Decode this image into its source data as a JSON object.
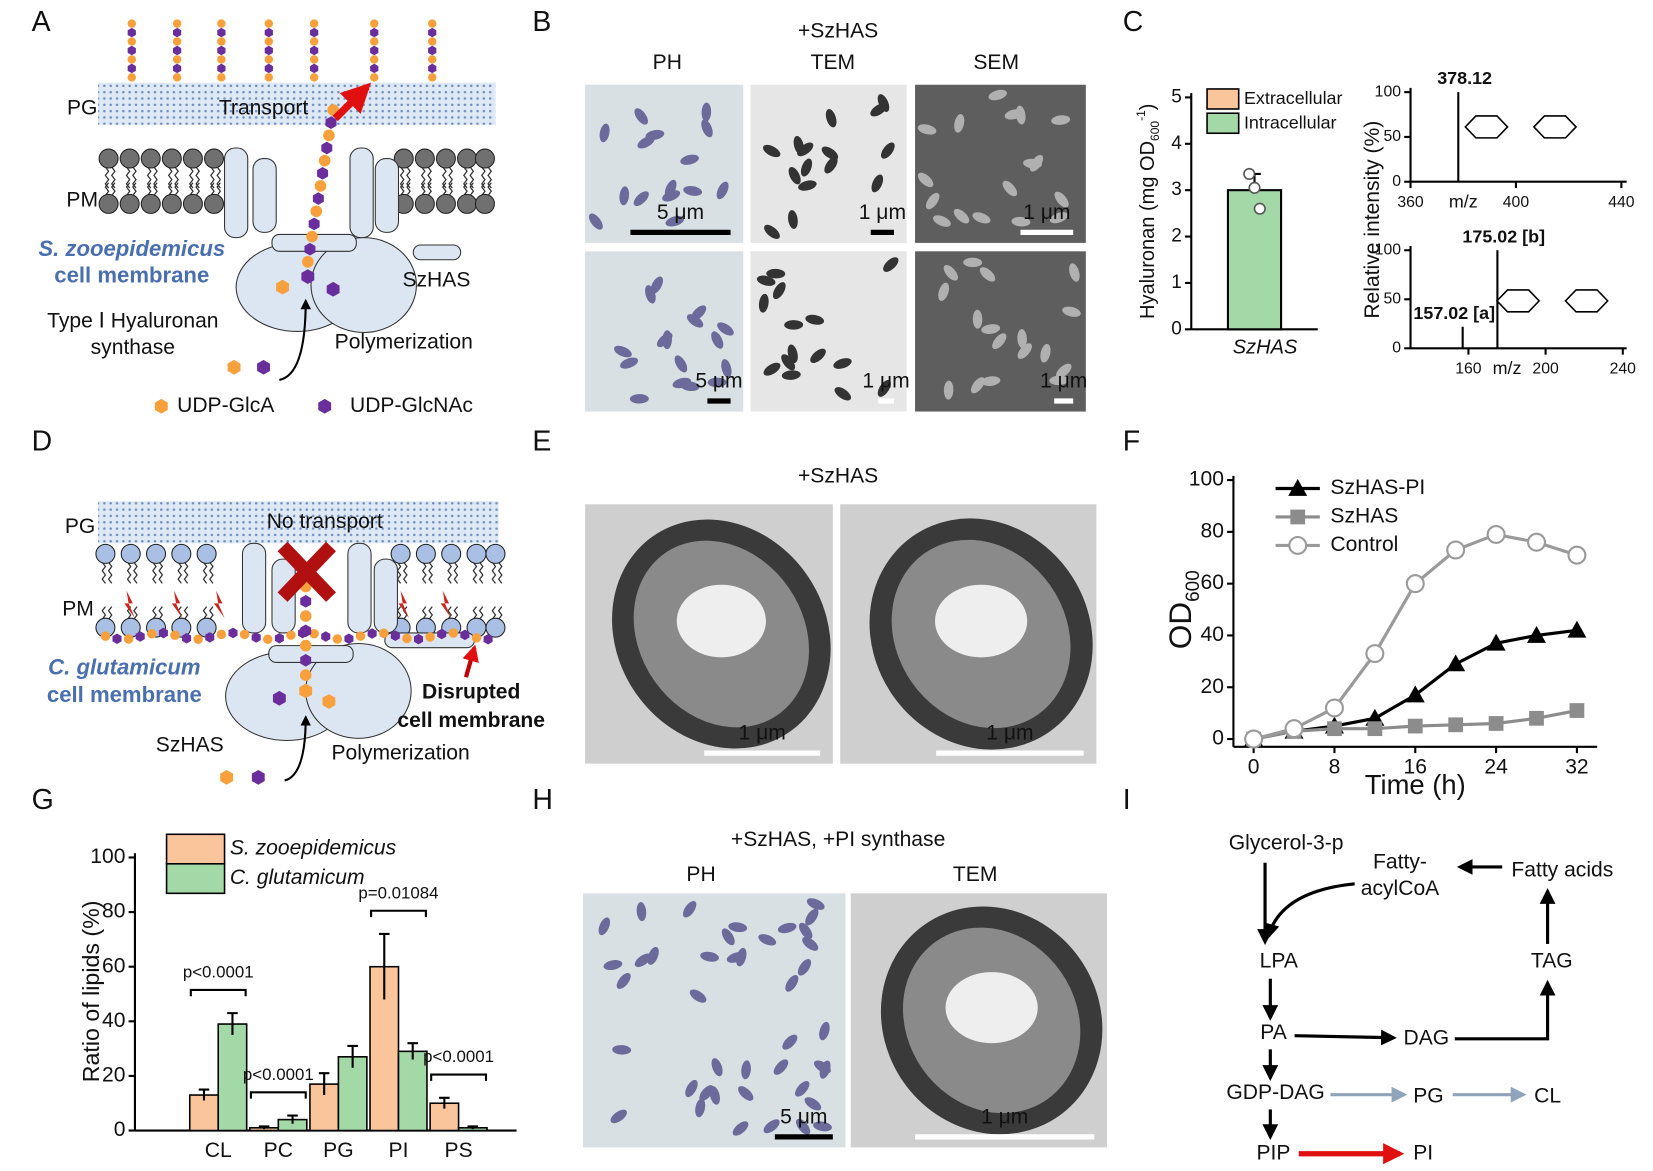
{
  "panel_labels": [
    "A",
    "B",
    "C",
    "D",
    "E",
    "F",
    "G",
    "H",
    "I"
  ],
  "panel_a": {
    "pg": "PG",
    "transport": "Transport",
    "pm": "PM",
    "organism": "S. zooepidemicus",
    "membrane": "cell membrane",
    "enzyme": "SzHAS",
    "enzyme_type": [
      "Type Ⅰ Hyaluronan",
      "synthase"
    ],
    "process": "Polymerization",
    "substrates": [
      "UDP-GlcA",
      "UDP-GlcNAc"
    ]
  },
  "panel_b": {
    "title": "+SzHAS",
    "columns": [
      "PH",
      "TEM",
      "SEM"
    ],
    "scale_bars": [
      [
        "5 μm",
        "1 μm",
        "1 μm"
      ],
      [
        "5 μm",
        "1 μm",
        "1 μm"
      ]
    ]
  },
  "panel_d": {
    "pg": "PG",
    "transport": "No transport",
    "pm": "PM",
    "organism": "C. glutamicum",
    "membrane": "cell membrane",
    "damage": [
      "Disrupted",
      "cell membrane"
    ],
    "enzyme": "SzHAS",
    "process": "Polymerization"
  },
  "panel_e": {
    "title": "+SzHAS",
    "scale_bars": [
      "1 μm",
      "1 μm"
    ]
  },
  "panel_h": {
    "title": "+SzHAS, +PI synthase",
    "columns": [
      "PH",
      "TEM"
    ],
    "scale_bars": [
      "5 μm",
      "1 μm"
    ]
  },
  "panel_i": {
    "nodes": [
      "Glycerol-3-p",
      [
        "Fatty-",
        "acylCoA"
      ],
      "Fatty acids",
      "LPA",
      "TAG",
      "PA",
      "DAG",
      "GDP-DAG",
      "PG",
      "CL",
      "PIP",
      "PI"
    ]
  },
  "chart_data": [
    {
      "type": "bar",
      "y_label": [
        "Hyaluronan (mg OD",
        "600",
        "-1",
        ")"
      ],
      "categories": [
        "SzHAS"
      ],
      "series": [
        {
          "name": "Extracellular",
          "color": "#fbc59c",
          "values": [
            0
          ]
        },
        {
          "name": "Intracellular",
          "color": "#a2d9a6",
          "values": [
            3.0
          ],
          "errors": [
            0.35
          ],
          "points": [
            [
              3.35,
              3.05,
              2.6
            ]
          ]
        }
      ],
      "ylim": [
        0,
        5
      ],
      "yticks": [
        0,
        1,
        2,
        3,
        4,
        5
      ]
    },
    {
      "type": "stem",
      "x": [
        378.12
      ],
      "values": [
        100
      ],
      "value_labels": [
        "378.12"
      ],
      "xlim": [
        360,
        442
      ],
      "xticks": [
        360,
        400,
        440
      ],
      "ylim": [
        0,
        100
      ],
      "yticks": [
        0,
        50,
        100
      ],
      "x_label": "m/z",
      "y_label": "Relative intensity (%)"
    },
    {
      "type": "stem",
      "x": [
        157.02,
        175.02
      ],
      "values": [
        22,
        100
      ],
      "value_labels": [
        "157.02 [a]",
        "175.02 [b]"
      ],
      "xlim": [
        130,
        242
      ],
      "xticks": [
        160,
        200,
        240
      ],
      "ylim": [
        0,
        100
      ],
      "yticks": [
        0,
        50,
        100
      ],
      "x_label": "m/z"
    },
    {
      "type": "line",
      "x": [
        0,
        4,
        8,
        12,
        16,
        20,
        24,
        28,
        32
      ],
      "series": [
        {
          "name": "SzHAS-PI",
          "color": "#000000",
          "marker": "triangle",
          "values": [
            0,
            3,
            5,
            8,
            17,
            29,
            37,
            40,
            42
          ]
        },
        {
          "name": "SzHAS",
          "color": "#8c8c8c",
          "marker": "square",
          "values": [
            0,
            3,
            4,
            4,
            5,
            5.5,
            6,
            8,
            11
          ]
        },
        {
          "name": "Control",
          "color": "#9a9a9a",
          "marker": "circle",
          "values": [
            0,
            4,
            12,
            33,
            60,
            73,
            79,
            76,
            71
          ]
        }
      ],
      "xlim": [
        -2,
        34
      ],
      "xticks": [
        0,
        8,
        16,
        24,
        32
      ],
      "ylim": [
        -3,
        100
      ],
      "yticks": [
        0,
        20,
        40,
        60,
        80,
        100
      ],
      "x_label": "Time (h)",
      "y_label": [
        "OD",
        "600"
      ]
    },
    {
      "type": "grouped_bar",
      "categories": [
        "CL",
        "PC",
        "PG",
        "PI",
        "PS"
      ],
      "series": [
        {
          "name": "S. zooepidemicus",
          "color": "#fbc59c",
          "values": [
            13,
            1,
            17,
            60,
            10
          ],
          "errors": [
            2,
            0.5,
            4,
            12,
            2
          ]
        },
        {
          "name": "C. glutamicum",
          "color": "#a2d9a6",
          "values": [
            39,
            4,
            27,
            29,
            1
          ],
          "errors": [
            4,
            1.5,
            4,
            3,
            0.5
          ]
        }
      ],
      "annotations": [
        "p<0.0001",
        "p<0.0001",
        null,
        "p=0.01084",
        "p<0.0001"
      ],
      "ylim": [
        0,
        100
      ],
      "yticks": [
        0,
        20,
        40,
        60,
        80,
        100
      ],
      "y_label": "Ratio of lipids (%)"
    }
  ]
}
